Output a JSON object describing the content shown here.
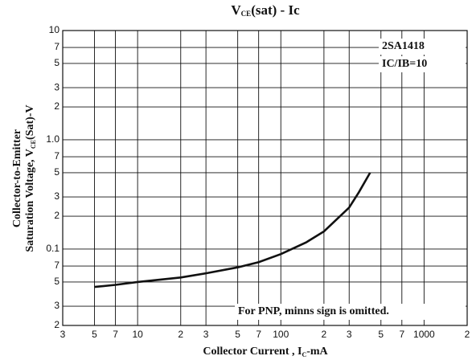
{
  "chart_data": {
    "type": "line",
    "title": [
      "V",
      "CE",
      "(sat) - Ic"
    ],
    "x_label": [
      "Collector Current , I",
      "C",
      "-mA"
    ],
    "y_label": [
      [
        "Collector-to-Emitter"
      ],
      [
        "Saturation Voltage, V",
        "CE",
        "(Sat)-V"
      ]
    ],
    "annotations": [
      "2SA1418",
      "IC/IB=10",
      "For PNP, minns sign is omitted."
    ],
    "log_x": true,
    "log_y": true,
    "grid": true,
    "xlim": [
      3,
      2000
    ],
    "xticks": [
      3,
      5,
      7,
      10,
      {
        "value": 20,
        "label": "2"
      },
      {
        "value": 30,
        "label": "3"
      },
      {
        "value": 50,
        "label": "5"
      },
      {
        "value": 70,
        "label": "7"
      },
      100,
      {
        "value": 200,
        "label": "2"
      },
      {
        "value": 300,
        "label": "3"
      },
      {
        "value": 500,
        "label": "5"
      },
      {
        "value": 700,
        "label": "7"
      },
      1000,
      {
        "value": 2000,
        "label": "2"
      }
    ],
    "ylim": [
      0.02,
      10
    ],
    "yticks": [
      10,
      7,
      5,
      3,
      2,
      {
        "value": 1,
        "label": "1.0"
      },
      {
        "value": 0.7,
        "label": "7"
      },
      {
        "value": 0.5,
        "label": "5"
      },
      {
        "value": 0.3,
        "label": "3"
      },
      {
        "value": 0.2,
        "label": "2"
      },
      0.1,
      {
        "value": 0.07,
        "label": "7"
      },
      {
        "value": 0.05,
        "label": "5"
      },
      {
        "value": 0.03,
        "label": "3"
      },
      {
        "value": 0.02,
        "label": "2"
      }
    ],
    "series": [
      {
        "color": "#111111",
        "x": [
          5,
          7,
          10,
          20,
          30,
          50,
          70,
          100,
          150,
          200,
          300,
          350,
          420
        ],
        "values": [
          0.045,
          0.047,
          0.05,
          0.055,
          0.06,
          0.068,
          0.076,
          0.09,
          0.115,
          0.145,
          0.24,
          0.33,
          0.5
        ]
      }
    ]
  }
}
